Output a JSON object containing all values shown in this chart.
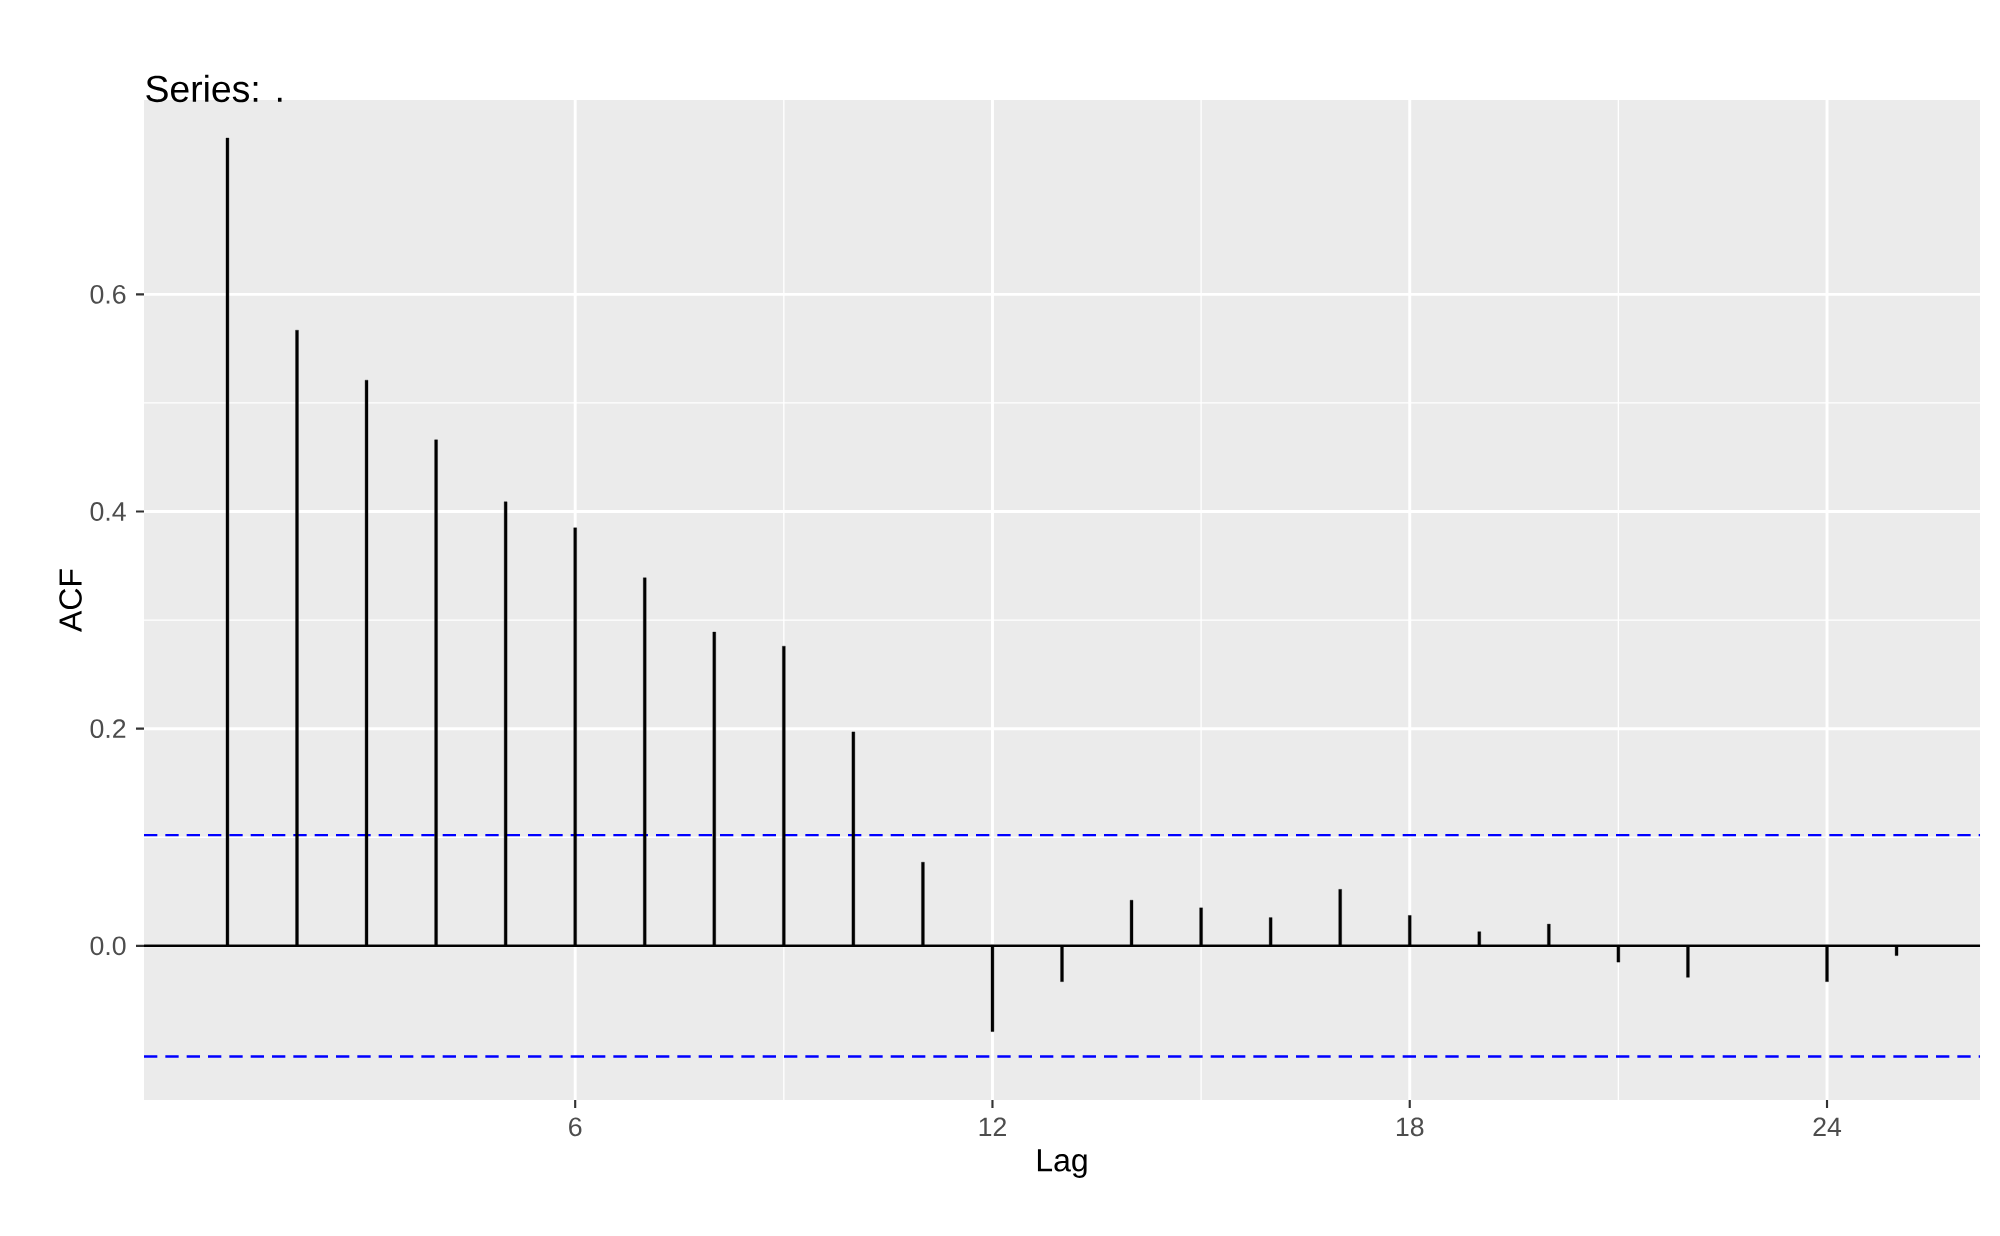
{
  "chart_data": {
    "type": "bar",
    "title": "Series: .",
    "xlabel": "Lag",
    "ylabel": "ACF",
    "x": [
      1,
      2,
      3,
      4,
      5,
      6,
      7,
      8,
      9,
      10,
      11,
      12,
      13,
      14,
      15,
      16,
      17,
      18,
      19,
      20,
      21,
      22,
      23,
      24,
      25
    ],
    "values": [
      0.744,
      0.567,
      0.521,
      0.466,
      0.409,
      0.385,
      0.339,
      0.289,
      0.276,
      0.197,
      0.077,
      -0.079,
      -0.033,
      0.042,
      0.035,
      0.026,
      0.052,
      0.028,
      0.013,
      0.02,
      -0.015,
      -0.029,
      null,
      -0.033,
      -0.009
    ],
    "color": "#000000",
    "xlim": [
      -0.2,
      26.2
    ],
    "ylim": [
      -0.142,
      0.779
    ],
    "xticks": [
      6,
      12,
      18,
      24
    ],
    "yticks": [
      {
        "value": 0,
        "label": "0.0"
      },
      {
        "value": 0.2,
        "label": "0.2"
      },
      {
        "value": 0.4,
        "label": "0.4"
      },
      {
        "value": 0.6,
        "label": "0.6"
      }
    ],
    "grid": true,
    "ref_lines": [
      {
        "axis": "y",
        "value": 0,
        "color": "#000000",
        "line_style": "solid"
      },
      {
        "axis": "y",
        "value": 0.102,
        "color": "#0000ff",
        "line_style": "dashed"
      },
      {
        "axis": "y",
        "value": -0.102,
        "color": "#0000ff",
        "line_style": "dashed"
      }
    ]
  }
}
